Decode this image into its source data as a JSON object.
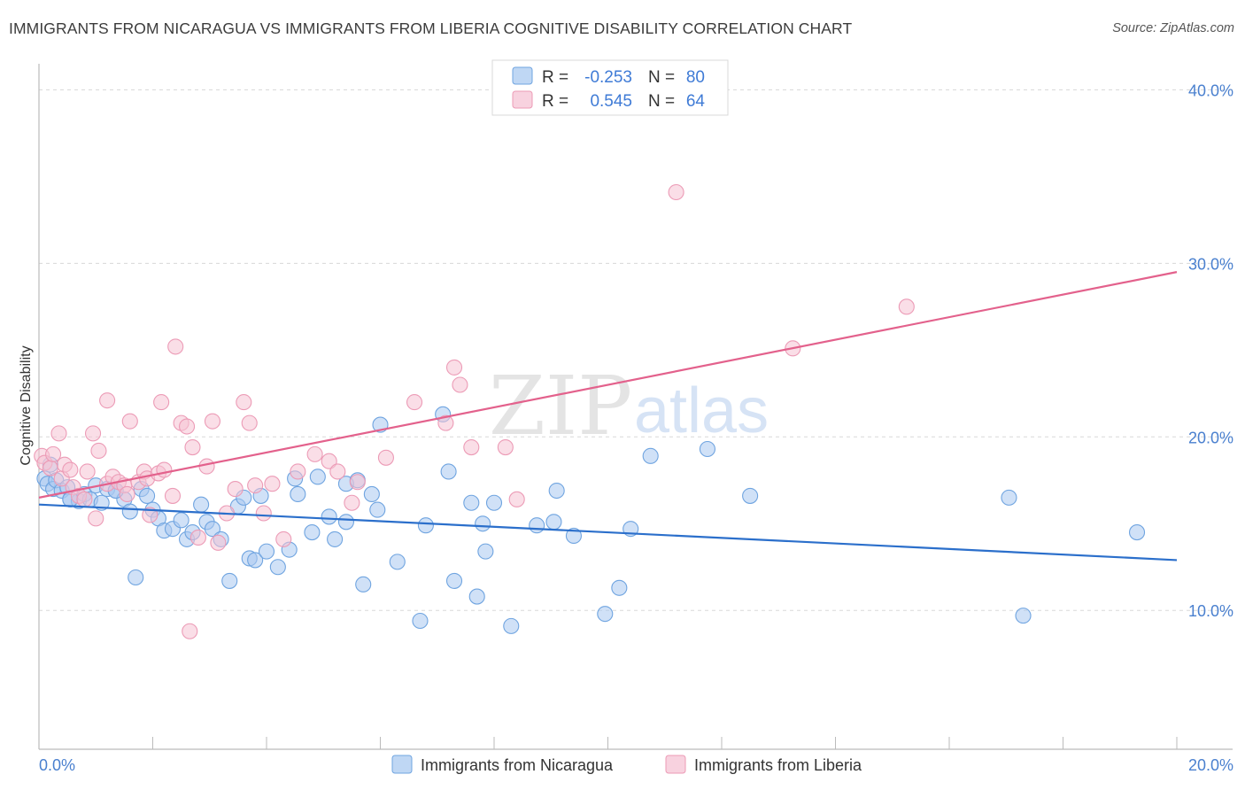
{
  "header": {
    "title": "IMMIGRANTS FROM NICARAGUA VS IMMIGRANTS FROM LIBERIA COGNITIVE DISABILITY CORRELATION CHART",
    "source": "Source: ZipAtlas.com"
  },
  "watermark": {
    "zip": "ZIP",
    "atlas": "atlas"
  },
  "chart_data": {
    "type": "scatter",
    "ylabel": "Cognitive Disability",
    "xlim": [
      0,
      20
    ],
    "ylim": [
      2,
      41.5
    ],
    "x_tick_labels": {
      "min": "0.0%",
      "max": "20.0%"
    },
    "y_ticks": [
      {
        "value": 10,
        "label": "10.0%"
      },
      {
        "value": 20,
        "label": "20.0%"
      },
      {
        "value": 30,
        "label": "30.0%"
      },
      {
        "value": 40,
        "label": "40.0%"
      }
    ],
    "x_minor_ticks": [
      2,
      4,
      6,
      8,
      10,
      12,
      14,
      16,
      18,
      20
    ],
    "legend": {
      "r_label": "R =",
      "n_label": "N =",
      "rows": [
        {
          "r": "-0.253",
          "n": "80"
        },
        {
          "r": "0.545",
          "n": "64"
        }
      ]
    },
    "series": [
      {
        "name": "Immigrants from Nicaragua",
        "color": "#6fa4e0",
        "fill": "#a9c9f0",
        "line_color": "#2b6fcb",
        "trend": {
          "x0": 0,
          "y0": 16.1,
          "x1": 20,
          "y1": 12.9
        },
        "points": [
          [
            0.1,
            17.6
          ],
          [
            0.15,
            17.3
          ],
          [
            0.2,
            18.4
          ],
          [
            0.25,
            17.0
          ],
          [
            0.3,
            17.5
          ],
          [
            0.4,
            16.9
          ],
          [
            0.5,
            17.1
          ],
          [
            0.55,
            16.4
          ],
          [
            0.7,
            16.3
          ],
          [
            0.8,
            16.7
          ],
          [
            0.9,
            16.4
          ],
          [
            1.0,
            17.2
          ],
          [
            1.1,
            16.2
          ],
          [
            1.2,
            17.0
          ],
          [
            1.35,
            16.9
          ],
          [
            1.5,
            16.4
          ],
          [
            1.6,
            15.7
          ],
          [
            1.7,
            11.9
          ],
          [
            1.8,
            17.0
          ],
          [
            1.9,
            16.6
          ],
          [
            2.0,
            15.8
          ],
          [
            2.1,
            15.3
          ],
          [
            2.2,
            14.6
          ],
          [
            2.35,
            14.7
          ],
          [
            2.5,
            15.2
          ],
          [
            2.6,
            14.1
          ],
          [
            2.7,
            14.5
          ],
          [
            2.85,
            16.1
          ],
          [
            2.95,
            15.1
          ],
          [
            3.05,
            14.7
          ],
          [
            3.2,
            14.1
          ],
          [
            3.35,
            11.7
          ],
          [
            3.5,
            16.0
          ],
          [
            3.6,
            16.5
          ],
          [
            3.7,
            13.0
          ],
          [
            3.8,
            12.9
          ],
          [
            3.9,
            16.6
          ],
          [
            4.0,
            13.4
          ],
          [
            4.2,
            12.5
          ],
          [
            4.4,
            13.5
          ],
          [
            4.5,
            17.6
          ],
          [
            4.55,
            16.7
          ],
          [
            4.8,
            14.5
          ],
          [
            4.9,
            17.7
          ],
          [
            5.1,
            15.4
          ],
          [
            5.2,
            14.1
          ],
          [
            5.4,
            15.1
          ],
          [
            5.4,
            17.3
          ],
          [
            5.6,
            17.5
          ],
          [
            5.7,
            11.5
          ],
          [
            5.85,
            16.7
          ],
          [
            5.95,
            15.8
          ],
          [
            6.0,
            20.7
          ],
          [
            6.3,
            12.8
          ],
          [
            6.7,
            9.4
          ],
          [
            6.8,
            14.9
          ],
          [
            7.1,
            21.3
          ],
          [
            7.2,
            18.0
          ],
          [
            7.3,
            11.7
          ],
          [
            7.6,
            16.2
          ],
          [
            7.7,
            10.8
          ],
          [
            7.8,
            15.0
          ],
          [
            7.85,
            13.4
          ],
          [
            8.0,
            16.2
          ],
          [
            8.3,
            9.1
          ],
          [
            8.75,
            14.9
          ],
          [
            9.05,
            15.1
          ],
          [
            9.1,
            16.9
          ],
          [
            9.4,
            14.3
          ],
          [
            9.95,
            9.8
          ],
          [
            10.2,
            11.3
          ],
          [
            10.4,
            14.7
          ],
          [
            10.75,
            18.9
          ],
          [
            11.75,
            19.3
          ],
          [
            12.5,
            16.6
          ],
          [
            17.05,
            16.5
          ],
          [
            17.3,
            9.7
          ],
          [
            19.3,
            14.5
          ],
          [
            0.55,
            16.4
          ],
          [
            1.35,
            16.9
          ]
        ]
      },
      {
        "name": "Immigrants from Liberia",
        "color": "#ec9bb6",
        "fill": "#f6c3d4",
        "line_color": "#e3618c",
        "trend": {
          "x0": 0,
          "y0": 16.5,
          "x1": 20,
          "y1": 29.5
        },
        "points": [
          [
            0.05,
            18.9
          ],
          [
            0.1,
            18.5
          ],
          [
            0.2,
            18.2
          ],
          [
            0.25,
            19.0
          ],
          [
            0.35,
            20.2
          ],
          [
            0.4,
            17.6
          ],
          [
            0.45,
            18.4
          ],
          [
            0.55,
            18.1
          ],
          [
            0.6,
            17.1
          ],
          [
            0.7,
            16.6
          ],
          [
            0.8,
            16.4
          ],
          [
            0.85,
            18.0
          ],
          [
            1.0,
            15.3
          ],
          [
            1.05,
            19.2
          ],
          [
            1.2,
            17.3
          ],
          [
            1.3,
            17.7
          ],
          [
            1.4,
            17.4
          ],
          [
            1.5,
            17.2
          ],
          [
            1.55,
            16.7
          ],
          [
            1.6,
            20.9
          ],
          [
            1.75,
            17.4
          ],
          [
            1.85,
            18.0
          ],
          [
            1.9,
            17.6
          ],
          [
            1.95,
            15.5
          ],
          [
            2.1,
            17.9
          ],
          [
            2.2,
            18.1
          ],
          [
            2.35,
            16.6
          ],
          [
            2.5,
            20.8
          ],
          [
            2.6,
            20.6
          ],
          [
            2.7,
            19.4
          ],
          [
            2.8,
            14.2
          ],
          [
            2.95,
            18.3
          ],
          [
            3.05,
            20.9
          ],
          [
            3.15,
            13.9
          ],
          [
            3.3,
            15.6
          ],
          [
            3.45,
            17.0
          ],
          [
            3.6,
            22.0
          ],
          [
            3.7,
            20.8
          ],
          [
            3.8,
            17.2
          ],
          [
            3.95,
            15.6
          ],
          [
            4.1,
            17.3
          ],
          [
            4.3,
            14.1
          ],
          [
            4.55,
            18.0
          ],
          [
            4.85,
            19.0
          ],
          [
            5.1,
            18.6
          ],
          [
            5.25,
            18.0
          ],
          [
            5.5,
            16.2
          ],
          [
            5.6,
            17.4
          ],
          [
            6.1,
            18.8
          ],
          [
            6.6,
            22.0
          ],
          [
            7.15,
            20.8
          ],
          [
            7.3,
            24.0
          ],
          [
            7.4,
            23.0
          ],
          [
            7.6,
            19.4
          ],
          [
            8.4,
            16.4
          ],
          [
            0.95,
            20.2
          ],
          [
            2.4,
            25.2
          ],
          [
            1.2,
            22.1
          ],
          [
            2.15,
            22.0
          ],
          [
            2.65,
            8.8
          ],
          [
            8.2,
            19.4
          ],
          [
            11.2,
            34.1
          ],
          [
            13.25,
            25.1
          ],
          [
            15.25,
            27.5
          ]
        ]
      }
    ],
    "bottom_legend": [
      {
        "label": "Immigrants from Nicaragua"
      },
      {
        "label": "Immigrants from Liberia"
      }
    ]
  }
}
